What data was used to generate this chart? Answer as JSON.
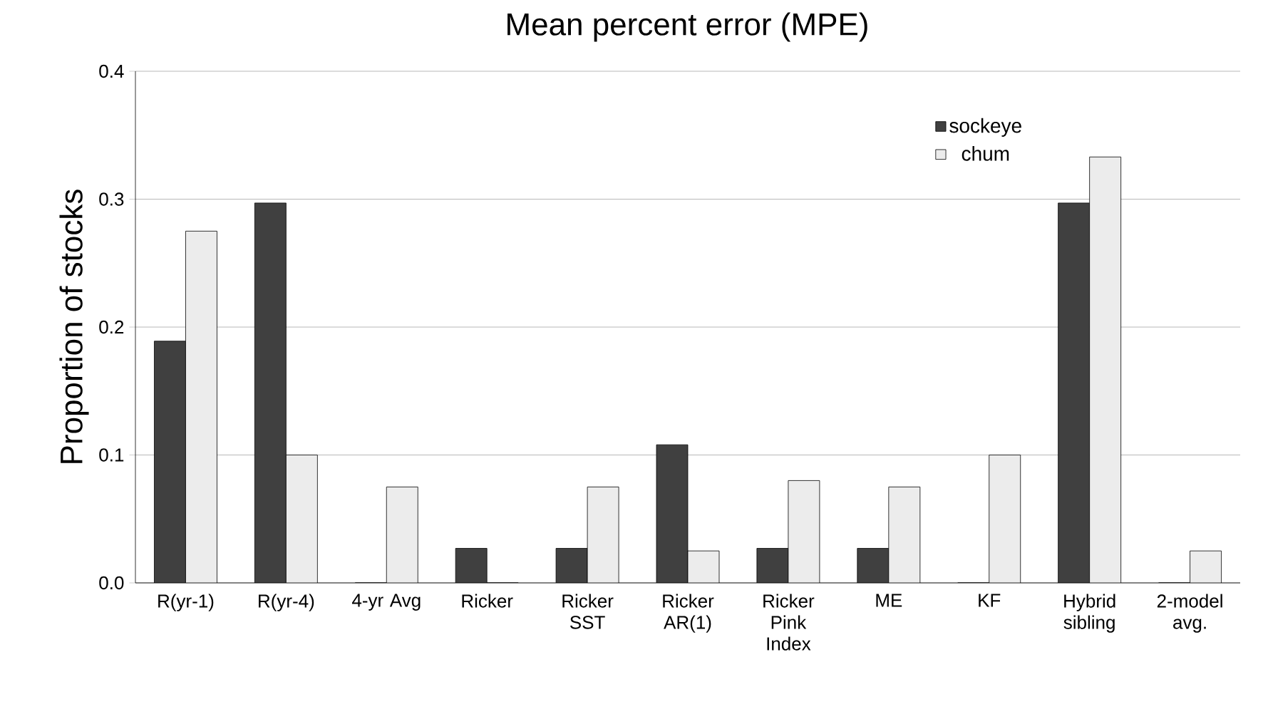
{
  "chart_data": {
    "type": "bar",
    "title": "Mean percent error (MPE)",
    "ylabel": "Proportion of stocks",
    "categories": [
      "R(yr-1)",
      "R(yr-4)",
      "4-yr Avg",
      "Ricker",
      "Ricker SST",
      "Ricker AR(1)",
      "Ricker Pink Index",
      "ME",
      "KF",
      "Hybrid sibling",
      "2-model avg."
    ],
    "series": [
      {
        "name": "sockeye",
        "color": "#404040",
        "values": [
          0.189,
          0.297,
          0,
          0.027,
          0.027,
          0.108,
          0.027,
          0.027,
          0,
          0.297,
          0
        ]
      },
      {
        "name": "chum",
        "color": "#ececec",
        "values": [
          0.275,
          0.1,
          0.075,
          0,
          0.075,
          0.025,
          0.08,
          0.075,
          0.1,
          0.333,
          0.025
        ]
      }
    ],
    "ylim": [
      0,
      0.4
    ],
    "yticks": [
      {
        "value": 0,
        "label": "0.0"
      },
      {
        "value": 0.1,
        "label": "0.1"
      },
      {
        "value": 0.2,
        "label": "0.2"
      },
      {
        "value": 0.3,
        "label": "0.3"
      },
      {
        "value": 0.4,
        "label": "0.4"
      }
    ],
    "grid": "y",
    "legend": "top right"
  }
}
